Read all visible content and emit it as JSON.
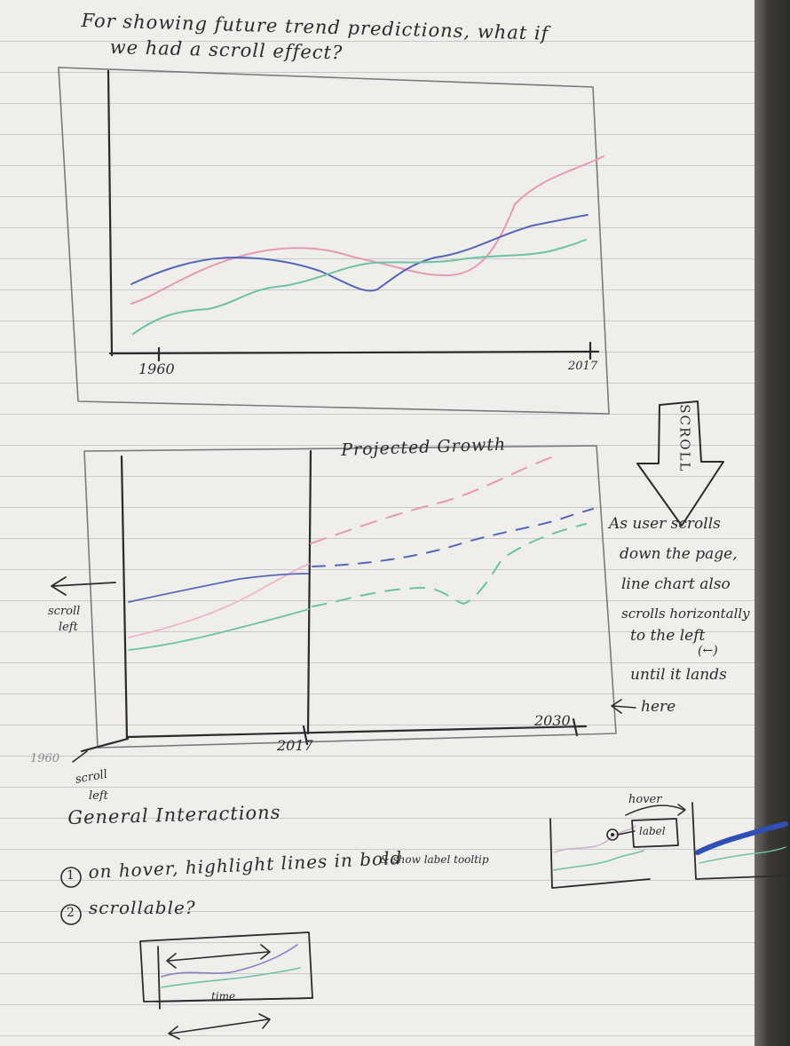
{
  "intro": {
    "line1": "For showing future trend predictions, what if",
    "line2": "we had a scroll effect?"
  },
  "sketch1": {
    "x_start": "1960",
    "x_end": "2017"
  },
  "sketch2": {
    "title": "Projected Growth",
    "x_mid": "2017",
    "x_end": "2030",
    "x_left": "1960",
    "scroll_left_top_1": "scroll",
    "scroll_left_top_2": "left",
    "scroll_left_bottom_1": "scroll",
    "scroll_left_bottom_2": "left"
  },
  "scroll_arrow": {
    "label": "SCROLL"
  },
  "note": {
    "lines": [
      "As user scrolls",
      "down the page,",
      "line chart also",
      "scrolls horizontally",
      "to the left",
      "(←)",
      "until it lands",
      "here"
    ]
  },
  "interactions": {
    "heading": "General Interactions",
    "item1_num": "1",
    "item1_text": "on hover, highlight lines in bold",
    "item1_sub": "& show label tooltip",
    "item2_num": "2",
    "item2_text": "scrollable?",
    "hover_label": "hover",
    "tooltip_label": "label",
    "time_label": "time"
  },
  "colors": {
    "ink": "#2b2b2e",
    "pink": "#e59ab5",
    "blue": "#5666b8",
    "green": "#6cc3a4",
    "bold_blue": "#2f4fb5"
  }
}
